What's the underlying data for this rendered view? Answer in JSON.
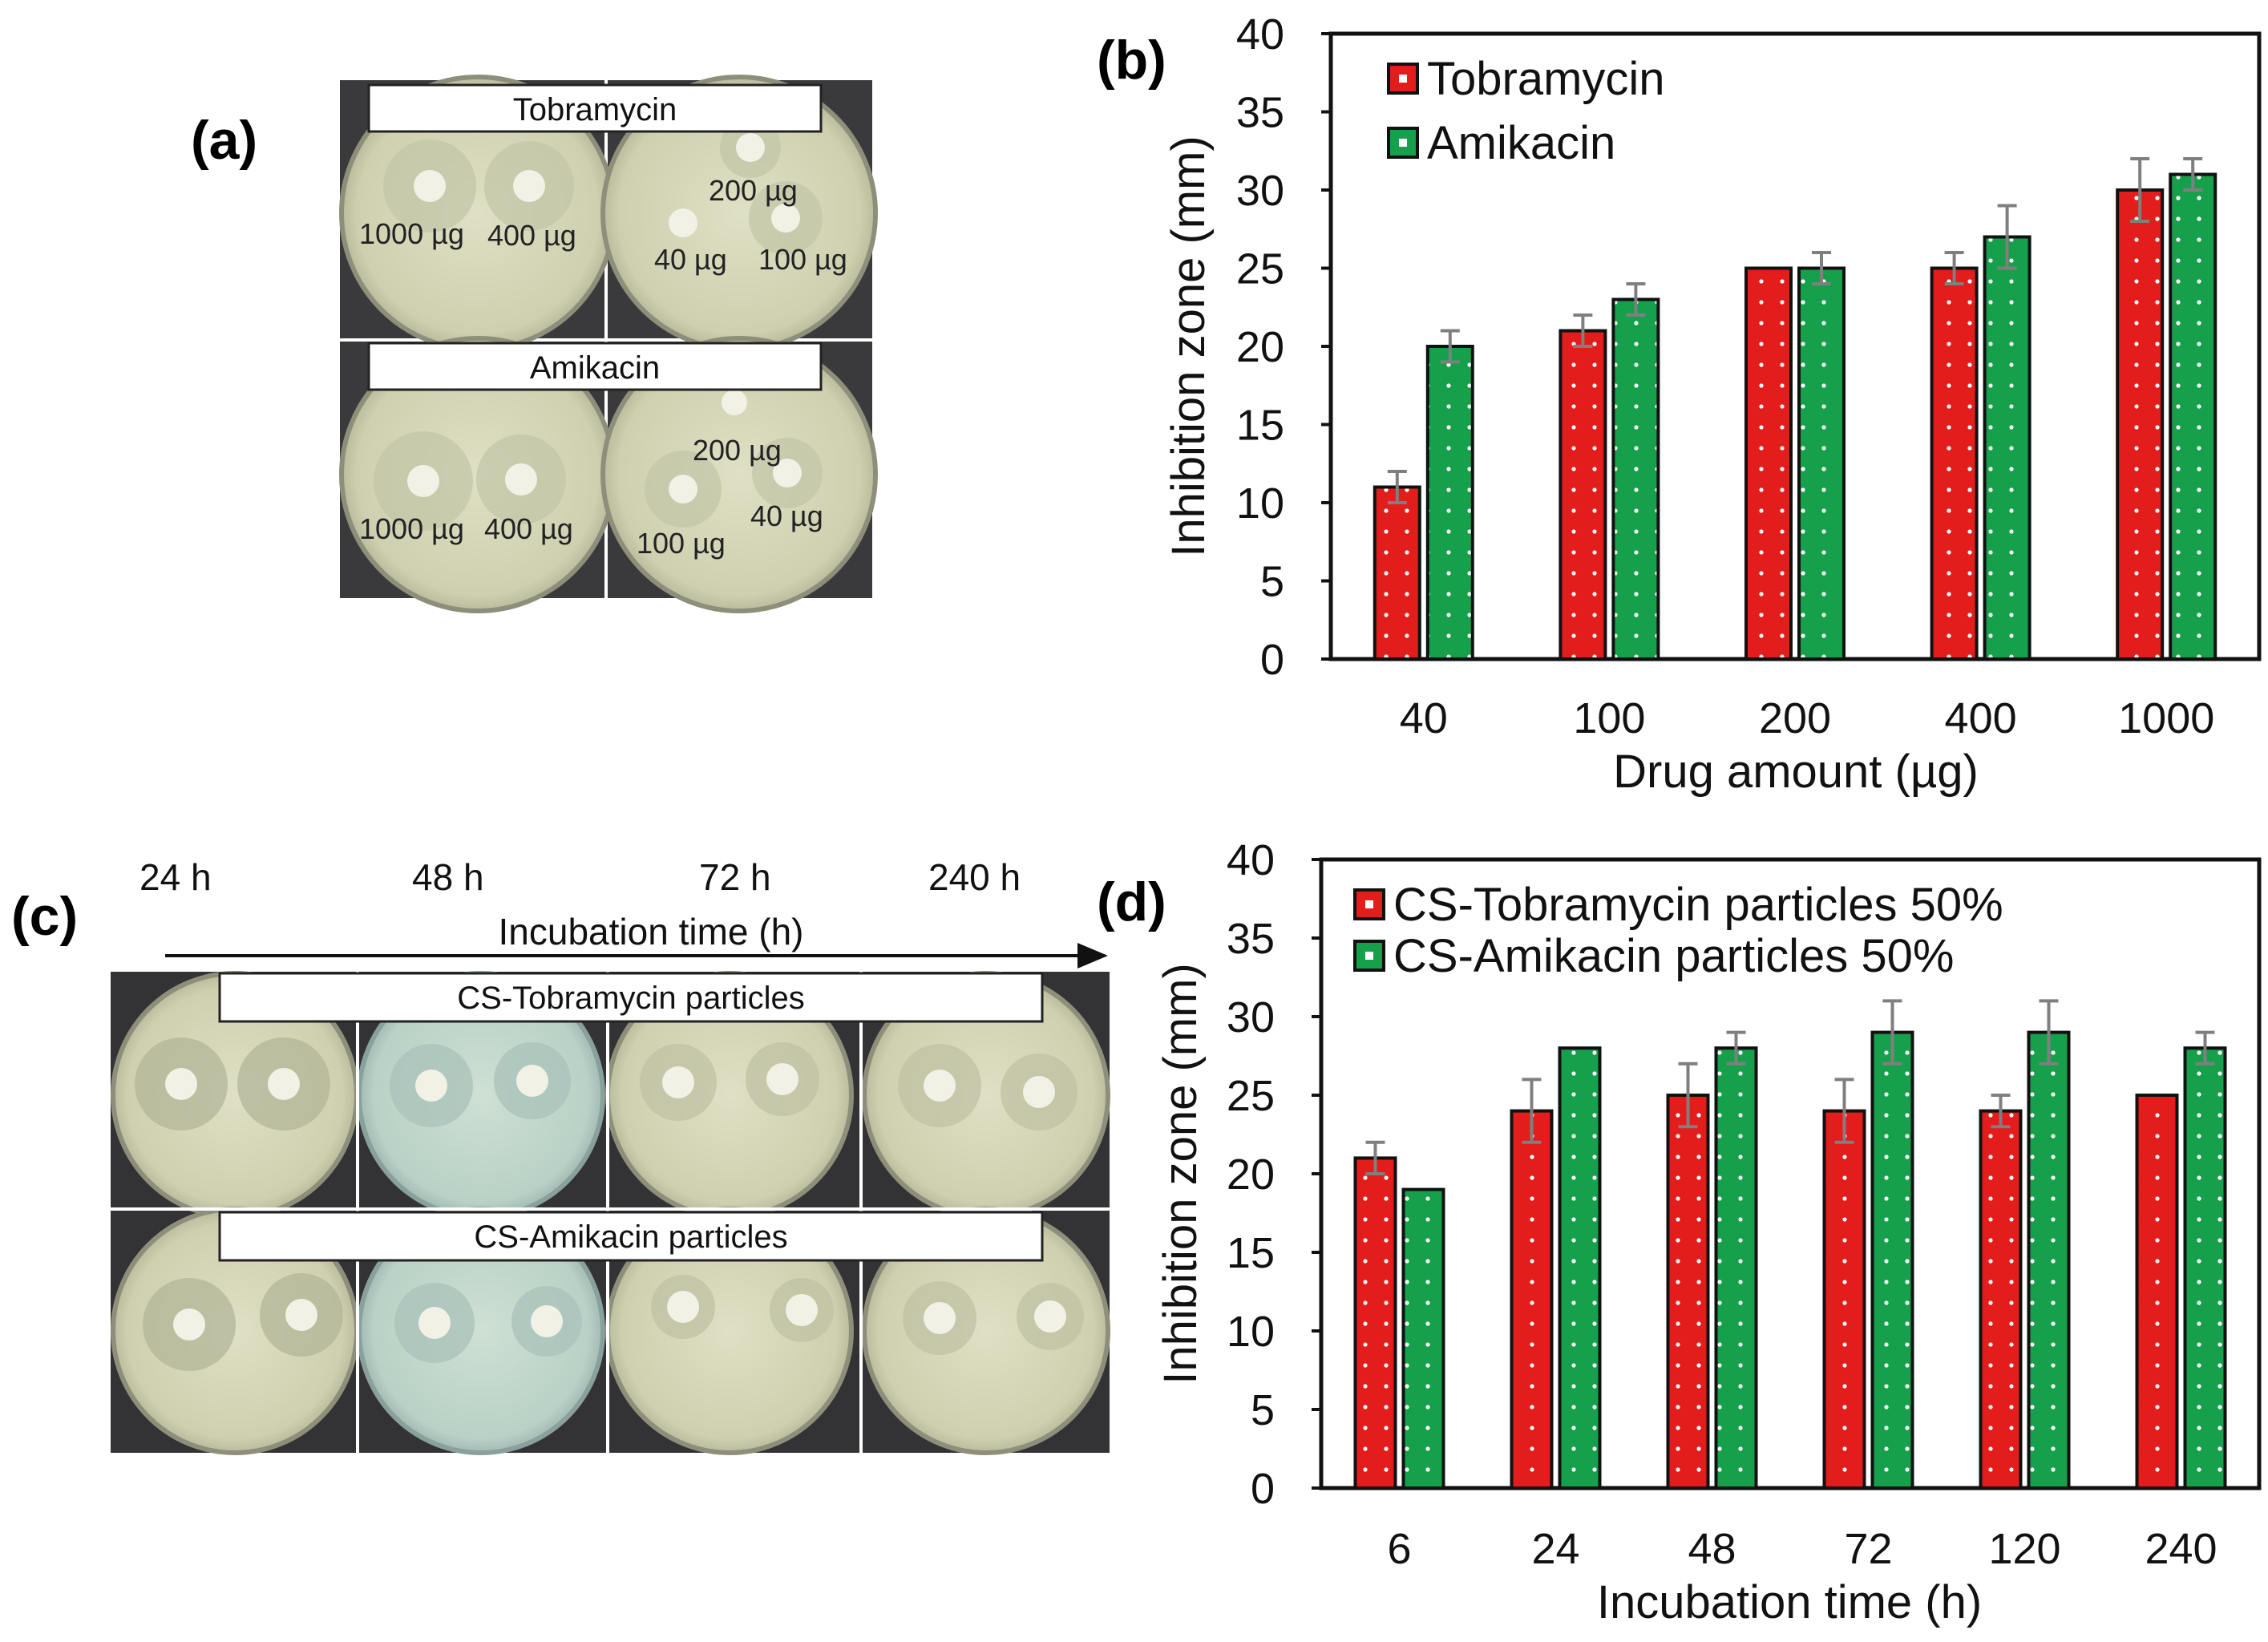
{
  "panels": {
    "a": {
      "label": "(a)",
      "banner_top": "Tobramycin",
      "banner_bottom": "Amikacin",
      "plate_labels_top_left": [
        "1000 µg",
        "400 µg"
      ],
      "plate_labels_top_right": [
        "200 µg",
        "40 µg",
        "100 µg"
      ],
      "plate_labels_bottom_left": [
        "1000 µg",
        "400 µg"
      ],
      "plate_labels_bottom_right": [
        "200 µg",
        "40 µg",
        "100 µg"
      ]
    },
    "b": {
      "label": "(b)"
    },
    "c": {
      "label": "(c)",
      "time_labels": [
        "24 h",
        "48 h",
        "72 h",
        "240 h"
      ],
      "arrow_label": "Incubation time (h)",
      "banner_top": "CS-Tobramycin particles",
      "banner_bottom": "CS-Amikacin particles"
    },
    "d": {
      "label": "(d)"
    }
  },
  "colors": {
    "series1": "#e31c1c",
    "series2": "#17a04b",
    "axis": "#111111",
    "errorbar": "#7f7f7f"
  },
  "chart_data": [
    {
      "id": "b",
      "type": "bar",
      "title": "",
      "xlabel": "Drug amount (µg)",
      "ylabel": "Inhibition zone (mm)",
      "ylim": [
        0,
        40
      ],
      "yticks": [
        0,
        5,
        10,
        15,
        20,
        25,
        30,
        35,
        40
      ],
      "categories": [
        "40",
        "100",
        "200",
        "400",
        "1000"
      ],
      "series": [
        {
          "name": "Tobramycin",
          "values": [
            11,
            21,
            25,
            25,
            30
          ],
          "errors": [
            1,
            1,
            0,
            1,
            2
          ]
        },
        {
          "name": "Amikacin",
          "values": [
            20,
            23,
            25,
            27,
            31
          ],
          "errors": [
            1,
            1,
            1,
            2,
            1
          ]
        }
      ],
      "legend": "top-left",
      "grid": false
    },
    {
      "id": "d",
      "type": "bar",
      "title": "",
      "xlabel": "Incubation time (h)",
      "ylabel": "Inhibition zone (mm)",
      "ylim": [
        0,
        40
      ],
      "yticks": [
        0,
        5,
        10,
        15,
        20,
        25,
        30,
        35,
        40
      ],
      "categories": [
        "6",
        "24",
        "48",
        "72",
        "120",
        "240"
      ],
      "series": [
        {
          "name": "CS-Tobramycin particles 50%",
          "values": [
            21,
            24,
            25,
            24,
            24,
            25
          ],
          "errors": [
            1,
            2,
            2,
            2,
            1,
            0
          ]
        },
        {
          "name": "CS-Amikacin particles 50%",
          "values": [
            19,
            28,
            28,
            29,
            29,
            28
          ],
          "errors": [
            0,
            0,
            1,
            2,
            2,
            1
          ]
        }
      ],
      "legend": "top-left",
      "grid": false
    }
  ]
}
